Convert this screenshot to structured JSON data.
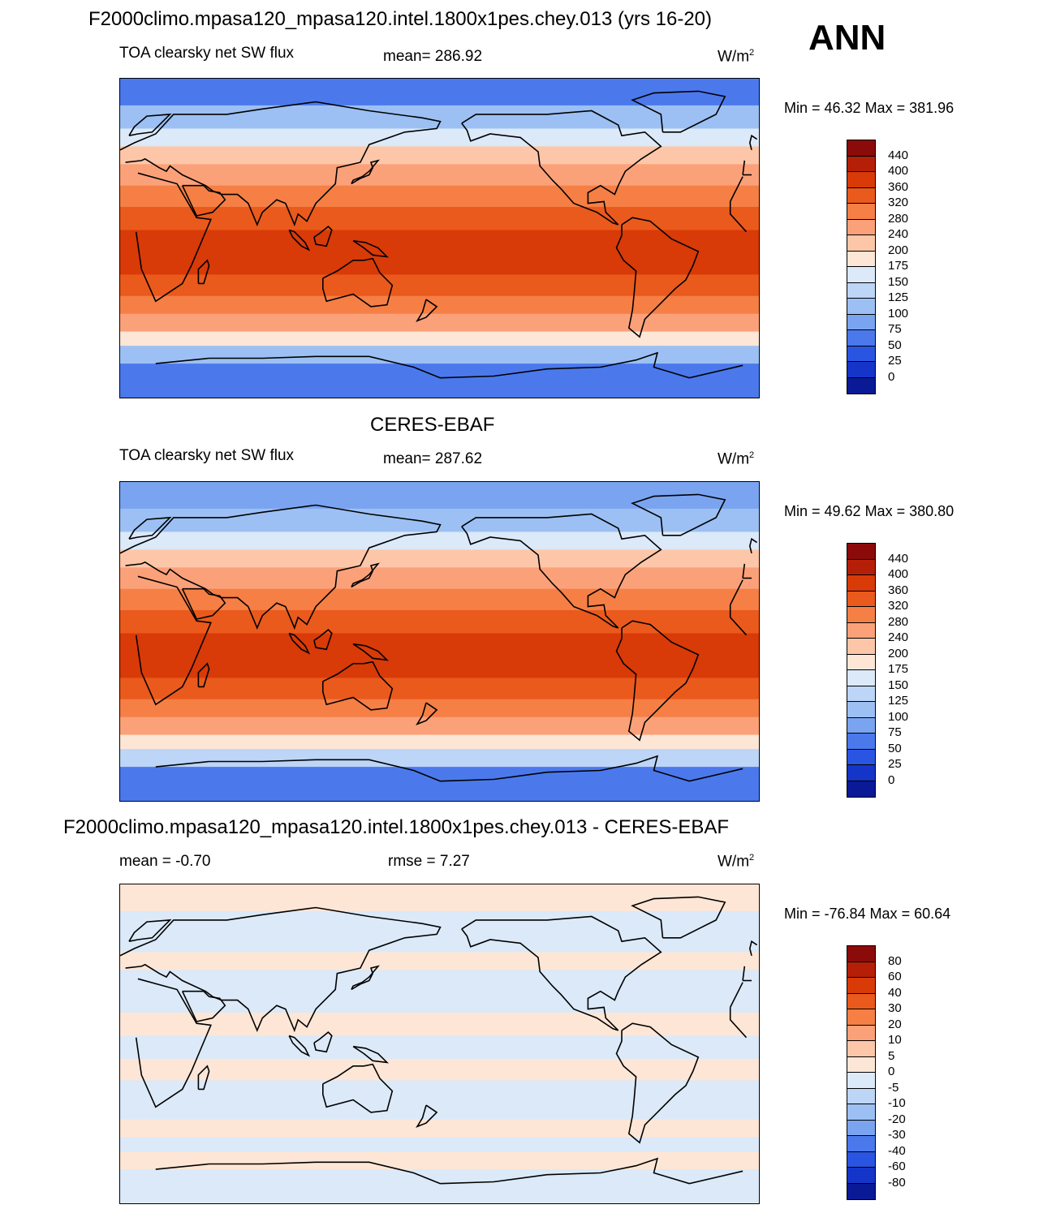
{
  "season": "ANN",
  "panels": [
    {
      "title": "F2000climo.mpasa120_mpasa120.intel.1800x1pes.chey.013 (yrs 16-20)",
      "variable": "TOA clearsky net SW flux",
      "stat1": "mean= 286.92",
      "stat2": "",
      "units": "W/m",
      "units_sup": "2",
      "minmax": "Min =  46.32 Max = 381.96"
    },
    {
      "title": "CERES-EBAF",
      "variable": "TOA clearsky net SW flux",
      "stat1": "mean= 287.62",
      "stat2": "",
      "units": "W/m",
      "units_sup": "2",
      "minmax": "Min =  49.62 Max = 380.80"
    },
    {
      "title": "F2000climo.mpasa120_mpasa120.intel.1800x1pes.chey.013 - CERES-EBAF",
      "variable": "",
      "stat1": "mean =  -0.70",
      "stat2": "rmse =   7.27",
      "units": "W/m",
      "units_sup": "2",
      "minmax": "Min = -76.84 Max =  60.64"
    }
  ],
  "chart_data": [
    {
      "type": "heatmap",
      "title": "F2000climo.mpasa120_mpasa120.intel.1800x1pes.chey.013 (yrs 16-20)",
      "variable": "TOA clearsky net SW flux",
      "units": "W/m2",
      "mean": 286.92,
      "min": 46.32,
      "max": 381.96,
      "colorbar_levels": [
        "440",
        "400",
        "360",
        "320",
        "280",
        "240",
        "200",
        "175",
        "150",
        "125",
        "100",
        "75",
        "50",
        "25",
        "0"
      ],
      "colors": [
        "#8b0a0a",
        "#b51f08",
        "#d83a08",
        "#ea5a1c",
        "#f57f45",
        "#fba179",
        "#fdc6a8",
        "#fde6d6",
        "#dbe9f8",
        "#bdd5f6",
        "#9cc0f3",
        "#7aa4f0",
        "#4b79ec",
        "#2a55e3",
        "#1435c8",
        "#0a1a96"
      ],
      "lat_bands": [
        {
          "lat": 90,
          "value": 60
        },
        {
          "lat": 75,
          "value": 110
        },
        {
          "lat": 62,
          "value": 160
        },
        {
          "lat": 52,
          "value": 210
        },
        {
          "lat": 42,
          "value": 260
        },
        {
          "lat": 30,
          "value": 310
        },
        {
          "lat": 18,
          "value": 345
        },
        {
          "lat": 5,
          "value": 365
        },
        {
          "lat": -8,
          "value": 360
        },
        {
          "lat": -20,
          "value": 330
        },
        {
          "lat": -32,
          "value": 290
        },
        {
          "lat": -42,
          "value": 240
        },
        {
          "lat": -52,
          "value": 180
        },
        {
          "lat": -60,
          "value": 120
        },
        {
          "lat": -70,
          "value": 60
        },
        {
          "lat": -90,
          "value": 50
        }
      ]
    },
    {
      "type": "heatmap",
      "title": "CERES-EBAF",
      "variable": "TOA clearsky net SW flux",
      "units": "W/m2",
      "mean": 287.62,
      "min": 49.62,
      "max": 380.8,
      "colorbar_levels": [
        "440",
        "400",
        "360",
        "320",
        "280",
        "240",
        "200",
        "175",
        "150",
        "125",
        "100",
        "75",
        "50",
        "25",
        "0"
      ],
      "colors": [
        "#8b0a0a",
        "#b51f08",
        "#d83a08",
        "#ea5a1c",
        "#f57f45",
        "#fba179",
        "#fdc6a8",
        "#fde6d6",
        "#dbe9f8",
        "#bdd5f6",
        "#9cc0f3",
        "#7aa4f0",
        "#4b79ec",
        "#2a55e3",
        "#1435c8",
        "#0a1a96"
      ],
      "lat_bands": [
        {
          "lat": 90,
          "value": 80
        },
        {
          "lat": 75,
          "value": 120
        },
        {
          "lat": 62,
          "value": 165
        },
        {
          "lat": 52,
          "value": 215
        },
        {
          "lat": 42,
          "value": 265
        },
        {
          "lat": 30,
          "value": 315
        },
        {
          "lat": 18,
          "value": 345
        },
        {
          "lat": 5,
          "value": 365
        },
        {
          "lat": -8,
          "value": 360
        },
        {
          "lat": -20,
          "value": 330
        },
        {
          "lat": -32,
          "value": 290
        },
        {
          "lat": -42,
          "value": 245
        },
        {
          "lat": -52,
          "value": 185
        },
        {
          "lat": -60,
          "value": 125
        },
        {
          "lat": -70,
          "value": 70
        },
        {
          "lat": -90,
          "value": 55
        }
      ]
    },
    {
      "type": "heatmap",
      "title": "F2000climo.mpasa120_mpasa120.intel.1800x1pes.chey.013 - CERES-EBAF",
      "units": "W/m2",
      "mean": -0.7,
      "rmse": 7.27,
      "min": -76.84,
      "max": 60.64,
      "colorbar_levels": [
        "80",
        "60",
        "40",
        "30",
        "20",
        "10",
        "5",
        "0",
        "-5",
        "-10",
        "-20",
        "-30",
        "-40",
        "-60",
        "-80"
      ],
      "colors": [
        "#8b0a0a",
        "#b51f08",
        "#d83a08",
        "#ea5a1c",
        "#f57f45",
        "#fba179",
        "#fdc6a8",
        "#fde6d6",
        "#dbe9f8",
        "#bdd5f6",
        "#9cc0f3",
        "#7aa4f0",
        "#4b79ec",
        "#2a55e3",
        "#1435c8",
        "#0a1a96"
      ],
      "lat_bands": [
        {
          "lat": 90,
          "value": 4
        },
        {
          "lat": 75,
          "value": -3
        },
        {
          "lat": 62,
          "value": -2
        },
        {
          "lat": 52,
          "value": 3
        },
        {
          "lat": 42,
          "value": -2
        },
        {
          "lat": 30,
          "value": -3
        },
        {
          "lat": 18,
          "value": 2
        },
        {
          "lat": 5,
          "value": -2
        },
        {
          "lat": -8,
          "value": 3
        },
        {
          "lat": -20,
          "value": -3
        },
        {
          "lat": -32,
          "value": -2
        },
        {
          "lat": -42,
          "value": 3
        },
        {
          "lat": -52,
          "value": -3
        },
        {
          "lat": -60,
          "value": 4
        },
        {
          "lat": -70,
          "value": -4
        },
        {
          "lat": -90,
          "value": 3
        }
      ]
    }
  ]
}
